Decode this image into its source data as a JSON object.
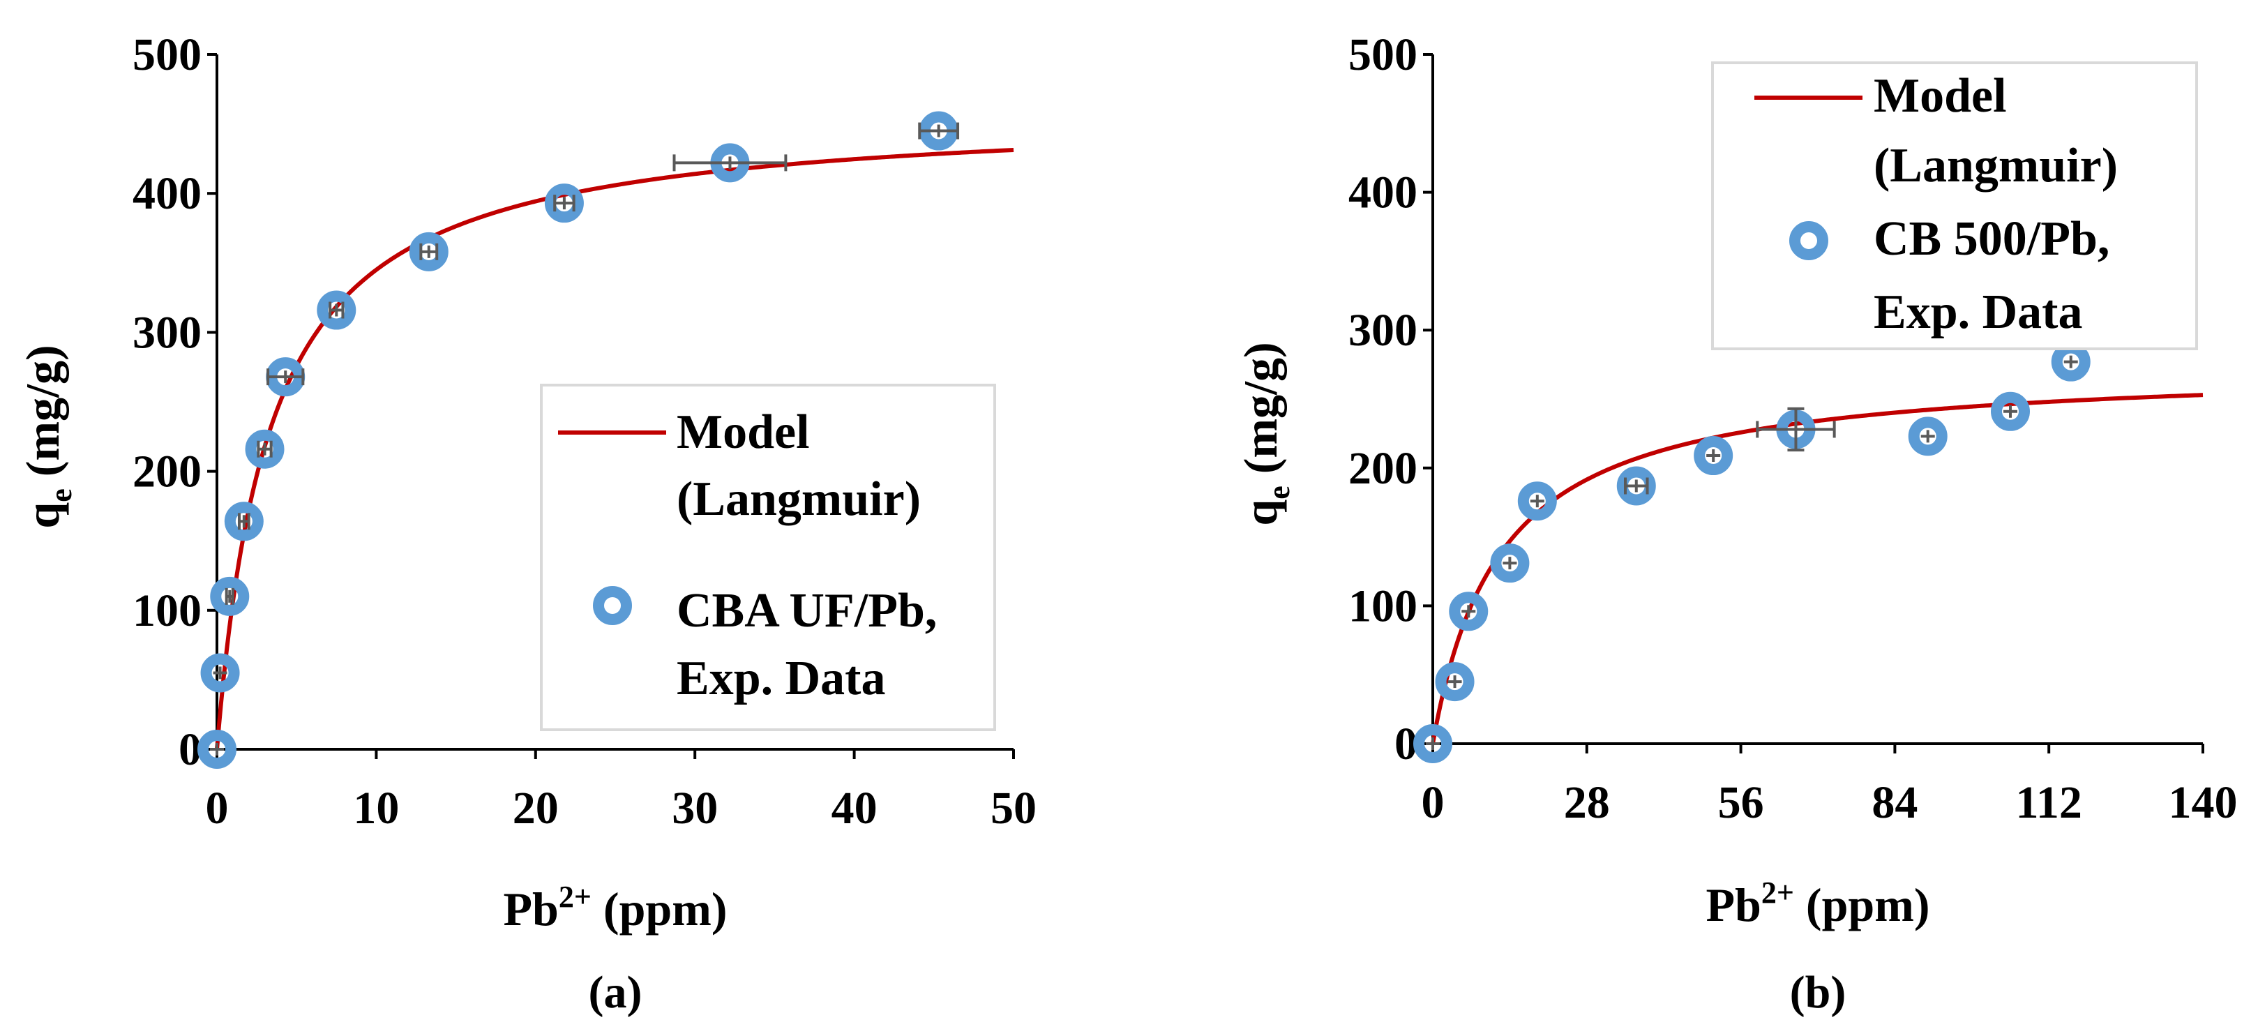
{
  "colors": {
    "model_line": "#c00000",
    "marker": "#5b9bd5",
    "error_bar": "#595959",
    "axis": "#000000",
    "legend_border": "#d9d9d9"
  },
  "chart_data": [
    {
      "type": "scatter",
      "panel_label": "(a)",
      "xlabel": "Pb",
      "xlabel_sup": "2+",
      "xlabel_suffix": " (ppm)",
      "ylabel": "q",
      "ylabel_sub": "e",
      "ylabel_suffix": " (mg/g)",
      "xlim": [
        0,
        50
      ],
      "ylim": [
        0,
        500
      ],
      "xticks": [
        0,
        10,
        20,
        30,
        40,
        50
      ],
      "xtick_labels": [
        "0",
        "10",
        "20",
        "30",
        "40",
        "50"
      ],
      "yticks": [
        0,
        100,
        200,
        300,
        400,
        500
      ],
      "ytick_labels": [
        "0",
        "100",
        "200",
        "300",
        "400",
        "500"
      ],
      "legend_position": "center-right",
      "series": [
        {
          "name": "Model (Langmuir)",
          "legend_lines": [
            "Model",
            "(Langmuir)"
          ],
          "type": "line",
          "model": {
            "qmax": 460,
            "KL": 0.3
          }
        },
        {
          "name": "CBA UF/Pb, Exp. Data",
          "legend_lines": [
            "CBA UF/Pb,",
            "Exp. Data"
          ],
          "type": "scatter",
          "x": [
            0,
            0.2,
            0.8,
            1.7,
            3.0,
            4.3,
            7.5,
            13.3,
            21.8,
            32.2,
            45.3
          ],
          "y": [
            0,
            55,
            110,
            164,
            216,
            268,
            316,
            358,
            393,
            422,
            445
          ],
          "xerr": [
            0,
            0,
            0.2,
            0.3,
            0.4,
            1.1,
            0.4,
            0.5,
            0.6,
            3.5,
            1.2
          ],
          "yerr": [
            0,
            0,
            0,
            0,
            0,
            0,
            0,
            0,
            0,
            0,
            0
          ]
        }
      ]
    },
    {
      "type": "scatter",
      "panel_label": "(b)",
      "xlabel": "Pb",
      "xlabel_sup": "2+",
      "xlabel_suffix": " (ppm)",
      "ylabel": "q",
      "ylabel_sub": "e",
      "ylabel_suffix": " (mg/g)",
      "xlim": [
        0,
        140
      ],
      "ylim": [
        0,
        500
      ],
      "xticks": [
        0,
        28,
        56,
        84,
        112,
        140
      ],
      "xtick_labels": [
        "0",
        "28",
        "56",
        "84",
        "112",
        "140"
      ],
      "yticks": [
        0,
        100,
        200,
        300,
        400,
        500
      ],
      "ytick_labels": [
        "0",
        "100",
        "200",
        "300",
        "400",
        "500"
      ],
      "legend_position": "top-right",
      "series": [
        {
          "name": "Model (Langmuir)",
          "legend_lines": [
            "Model",
            "(Langmuir)"
          ],
          "type": "line",
          "model": {
            "qmax": 275,
            "KL": 0.082
          }
        },
        {
          "name": "CB 500/Pb, Exp. Data",
          "legend_lines": [
            "CB 500/Pb,",
            "Exp. Data"
          ],
          "type": "scatter",
          "x": [
            0,
            4,
            6.5,
            14,
            19,
            37,
            51,
            66,
            90,
            105,
            116
          ],
          "y": [
            0,
            45,
            96,
            131,
            176,
            187,
            209,
            228,
            223,
            241,
            277
          ],
          "xerr": [
            0,
            0,
            0,
            0,
            0,
            2,
            0,
            7,
            0,
            0,
            0
          ],
          "yerr": [
            0,
            0,
            0,
            0,
            0,
            0,
            0,
            15,
            0,
            0,
            0
          ]
        }
      ]
    }
  ]
}
